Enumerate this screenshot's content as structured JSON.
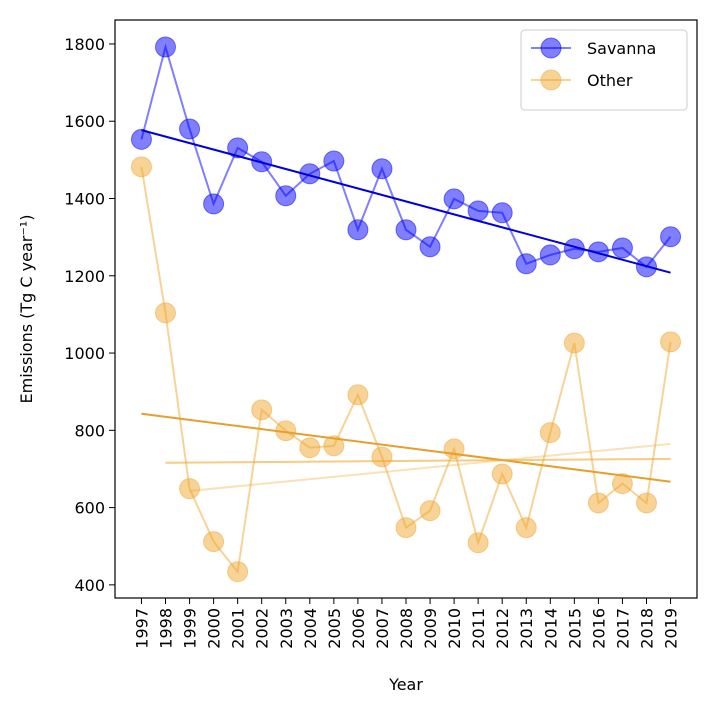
{
  "chart_data": {
    "type": "line",
    "xlabel": "Year",
    "ylabel": "Emissions (Tg C year⁻¹)",
    "x": [
      1997,
      1998,
      1999,
      2000,
      2001,
      2002,
      2003,
      2004,
      2005,
      2006,
      2007,
      2008,
      2009,
      2010,
      2011,
      2012,
      2013,
      2014,
      2015,
      2016,
      2017,
      2018,
      2019
    ],
    "series": [
      {
        "name": "Savanna",
        "color": "#0000ff",
        "alpha": 0.5,
        "values": [
          1553,
          1792,
          1580,
          1386,
          1531,
          1495,
          1407,
          1464,
          1497,
          1319,
          1477,
          1319,
          1275,
          1399,
          1368,
          1363,
          1231,
          1254,
          1270,
          1262,
          1272,
          1223,
          1301
        ]
      },
      {
        "name": "Other",
        "color": "#f0a830",
        "alpha": 0.5,
        "values": [
          1482,
          1104,
          649,
          512,
          434,
          853,
          799,
          755,
          760,
          892,
          731,
          548,
          592,
          752,
          509,
          687,
          548,
          794,
          1026,
          612,
          662,
          612,
          1029
        ]
      }
    ],
    "trend_lines": [
      {
        "color": "#0000dd",
        "alpha": 1,
        "x": [
          1997,
          2019
        ],
        "values": [
          1577,
          1208
        ]
      },
      {
        "color": "#e69f2a",
        "alpha": 1,
        "x": [
          1997,
          2019
        ],
        "values": [
          843,
          667
        ]
      },
      {
        "color": "#f0a830",
        "alpha": 0.6,
        "x": [
          1998,
          2019
        ],
        "values": [
          716,
          726
        ]
      },
      {
        "color": "#f0a830",
        "alpha": 0.35,
        "x": [
          1999,
          2019
        ],
        "values": [
          643,
          765
        ]
      }
    ],
    "xlim": [
      1995.9,
      2020.1
    ],
    "ylim": [
      366,
      1862
    ],
    "xticks": [
      1997,
      1998,
      1999,
      2000,
      2001,
      2002,
      2003,
      2004,
      2005,
      2006,
      2007,
      2008,
      2009,
      2010,
      2011,
      2012,
      2013,
      2014,
      2015,
      2016,
      2017,
      2018,
      2019
    ],
    "yticks": [
      400,
      600,
      800,
      1000,
      1200,
      1400,
      1600,
      1800
    ],
    "legend": "upper right",
    "grid": false
  }
}
